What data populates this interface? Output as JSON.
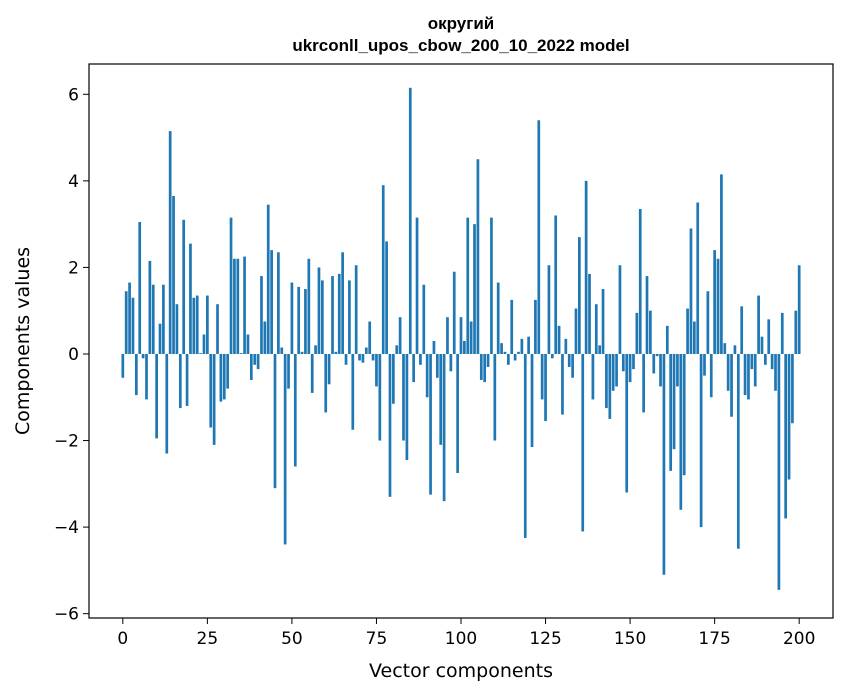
{
  "chart_data": {
    "type": "bar",
    "title": "округий",
    "subtitle": "ukrconll_upos_cbow_200_10_2022 model",
    "xlabel": "Vector components",
    "ylabel": "Components values",
    "xlim": [
      -10,
      210
    ],
    "ylim": [
      -6.1,
      6.7
    ],
    "xticks": [
      0,
      25,
      50,
      75,
      100,
      125,
      150,
      175,
      200
    ],
    "yticks": [
      -6,
      -4,
      -2,
      0,
      2,
      4,
      6
    ],
    "grid": false,
    "legend": "none",
    "bar_color": "#1f77b4",
    "values": [
      -0.55,
      1.45,
      1.65,
      1.3,
      -0.95,
      3.05,
      -0.1,
      -1.05,
      2.15,
      1.6,
      -1.95,
      0.7,
      1.6,
      -2.3,
      5.15,
      3.65,
      1.15,
      -1.25,
      3.1,
      -1.2,
      2.55,
      1.3,
      1.35,
      0.02,
      0.45,
      1.35,
      -1.7,
      -2.1,
      1.15,
      -1.1,
      -1.05,
      -0.8,
      3.15,
      2.2,
      2.2,
      0.02,
      2.25,
      0.45,
      -0.6,
      -0.25,
      -0.35,
      1.8,
      0.75,
      3.45,
      2.4,
      -3.1,
      2.35,
      0.15,
      -4.4,
      -0.8,
      1.65,
      -2.6,
      1.55,
      0.05,
      1.5,
      2.2,
      -0.9,
      0.2,
      2.0,
      1.7,
      -1.35,
      -0.7,
      1.8,
      0.05,
      1.85,
      2.35,
      -0.25,
      1.7,
      -1.75,
      2.05,
      -0.15,
      -0.2,
      0.15,
      0.75,
      -0.15,
      -0.75,
      -2.0,
      3.9,
      2.6,
      -3.3,
      -1.15,
      0.2,
      0.85,
      -2.0,
      -2.45,
      6.15,
      -0.65,
      3.15,
      -0.25,
      1.6,
      -1.0,
      -3.25,
      0.3,
      -0.55,
      -2.1,
      -3.4,
      0.85,
      -0.4,
      1.9,
      -2.75,
      0.85,
      0.3,
      3.15,
      0.75,
      3.0,
      4.5,
      -0.6,
      -0.65,
      -0.3,
      3.15,
      -2.0,
      1.65,
      0.25,
      0.05,
      -0.25,
      1.25,
      -0.15,
      0.05,
      0.35,
      -4.25,
      0.4,
      -2.15,
      1.25,
      5.4,
      -1.05,
      -1.55,
      2.05,
      -0.1,
      3.2,
      0.65,
      -1.4,
      0.35,
      -0.3,
      -0.55,
      1.05,
      2.7,
      -4.1,
      4.0,
      1.85,
      -1.05,
      1.15,
      0.2,
      1.5,
      -1.25,
      -1.5,
      -0.85,
      -0.75,
      2.05,
      -0.4,
      -3.2,
      -0.65,
      -0.35,
      0.95,
      3.35,
      -1.35,
      1.8,
      1.0,
      -0.45,
      -0.05,
      -0.75,
      -5.1,
      0.65,
      -2.7,
      -2.2,
      -0.75,
      -3.6,
      -2.8,
      1.05,
      2.9,
      0.75,
      3.5,
      -4.0,
      -0.5,
      1.45,
      -1.0,
      2.4,
      2.2,
      4.15,
      0.25,
      -0.85,
      -1.45,
      0.2,
      -4.5,
      1.1,
      -0.95,
      -1.05,
      -0.35,
      -0.75,
      1.35,
      0.4,
      -0.25,
      0.8,
      -0.35,
      -0.85,
      -5.45,
      0.95,
      -3.8,
      -2.9,
      -1.6,
      1.0,
      2.05
    ]
  }
}
